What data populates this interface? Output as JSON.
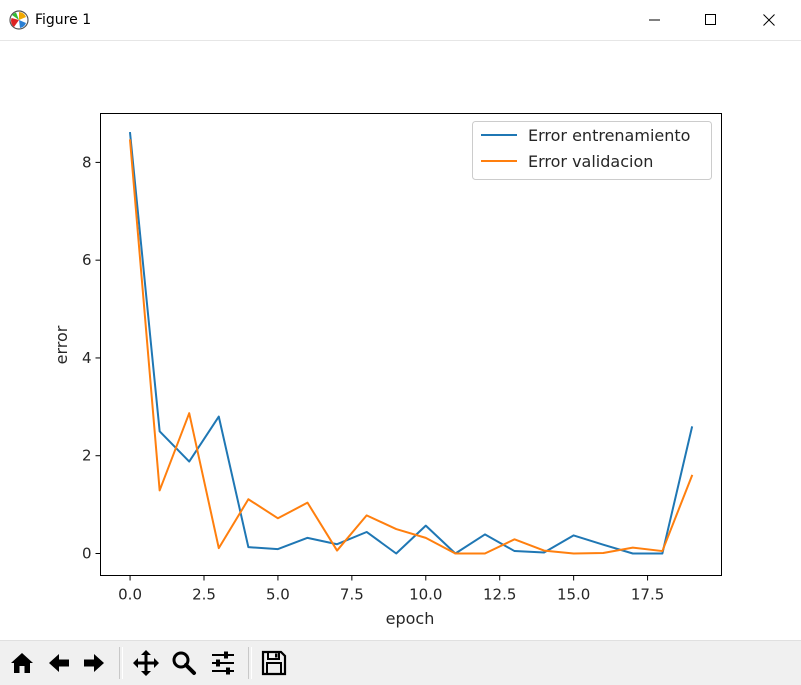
{
  "window": {
    "title": "Figure 1",
    "icons": {
      "app": "matplotlib-icon",
      "minimize": "minimize-icon",
      "maximize": "maximize-icon",
      "close": "close-icon"
    }
  },
  "toolbar": {
    "buttons": [
      "home-icon",
      "back-icon",
      "forward-icon",
      "pan-icon",
      "zoom-icon",
      "configure-subplots-icon",
      "save-icon"
    ]
  },
  "chart_data": {
    "type": "line",
    "title": "",
    "xlabel": "epoch",
    "ylabel": "error",
    "xlim": [
      -1.0,
      20.0
    ],
    "ylim": [
      -0.45,
      9.0
    ],
    "xticks": [
      0.0,
      2.5,
      5.0,
      7.5,
      10.0,
      12.5,
      15.0,
      17.5
    ],
    "xtick_labels": [
      "0.0",
      "2.5",
      "5.0",
      "7.5",
      "10.0",
      "12.5",
      "15.0",
      "17.5"
    ],
    "yticks": [
      0,
      2,
      4,
      6,
      8
    ],
    "ytick_labels": [
      "0",
      "2",
      "4",
      "6",
      "8"
    ],
    "grid": false,
    "legend_position": "top-right",
    "x": [
      0,
      1,
      2,
      3,
      4,
      5,
      6,
      7,
      8,
      9,
      10,
      11,
      12,
      13,
      14,
      15,
      16,
      17,
      18,
      19
    ],
    "series": [
      {
        "name": "Error entrenamiento",
        "color": "#1f77b4",
        "values": [
          8.6,
          2.5,
          1.88,
          2.8,
          0.13,
          0.09,
          0.32,
          0.19,
          0.44,
          0.0,
          0.57,
          0.0,
          0.39,
          0.05,
          0.02,
          0.37,
          0.18,
          0.0,
          0.0,
          2.58
        ]
      },
      {
        "name": "Error validacion",
        "color": "#ff7f0e",
        "values": [
          8.45,
          1.29,
          2.87,
          0.11,
          1.11,
          0.72,
          1.04,
          0.06,
          0.78,
          0.5,
          0.32,
          0.0,
          0.0,
          0.29,
          0.06,
          0.0,
          0.01,
          0.12,
          0.05,
          1.59
        ]
      }
    ]
  }
}
